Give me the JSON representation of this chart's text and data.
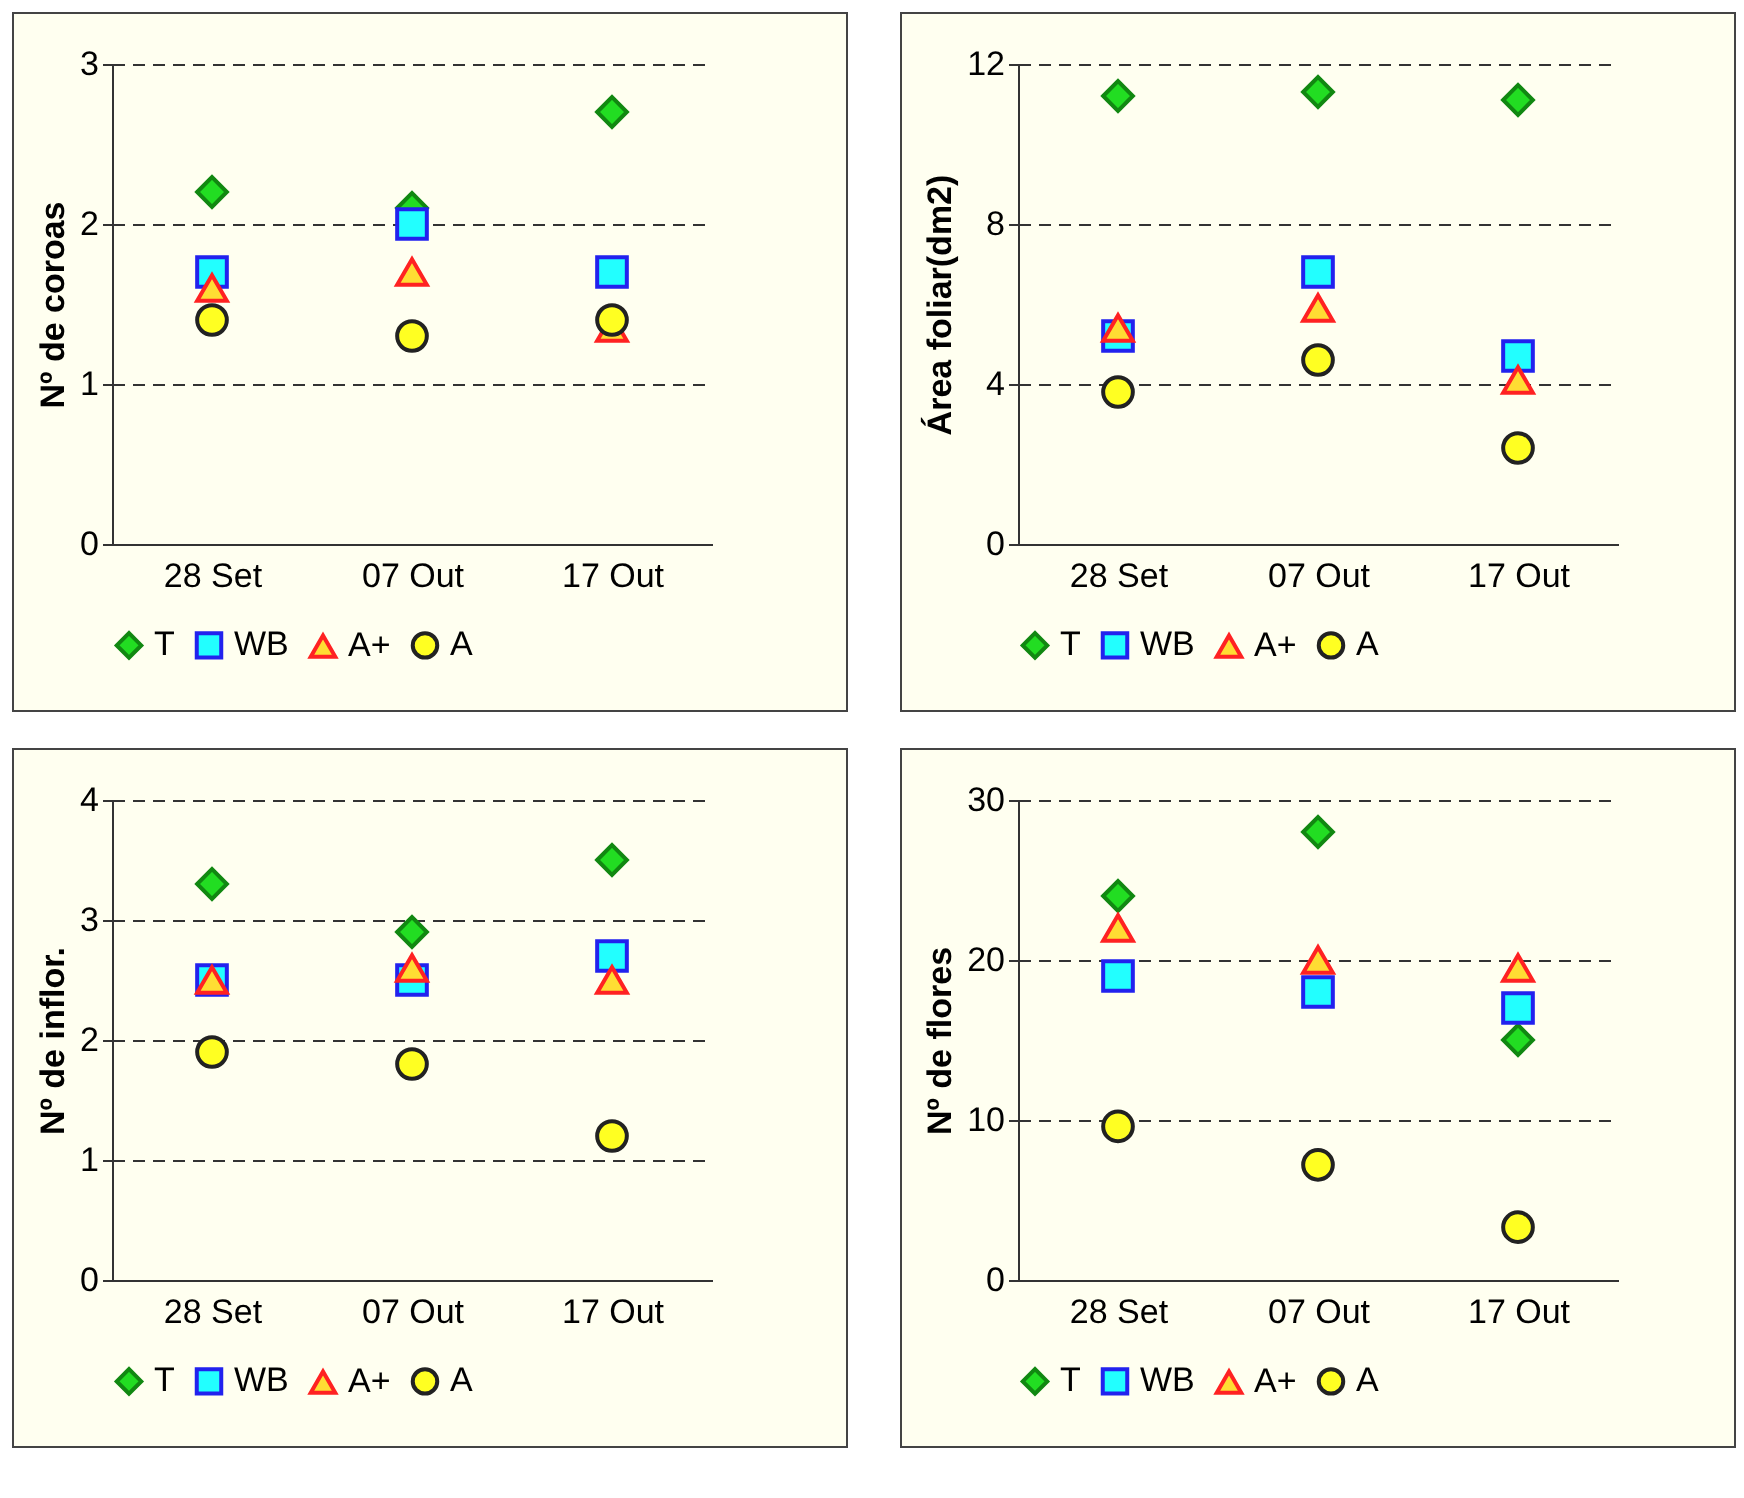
{
  "chart_data": [
    {
      "type": "scatter",
      "categories": [
        "28 Set",
        "07 Out",
        "17 Out"
      ],
      "ylabel": "Nº de coroas",
      "ylim": [
        0,
        3
      ],
      "yticks": [
        0,
        1,
        2,
        3
      ],
      "grid": "y",
      "legend": "bottom",
      "series": [
        {
          "name": "T",
          "color": "#22dd22",
          "marker": "diamond",
          "values": [
            2.2,
            2.1,
            2.7
          ]
        },
        {
          "name": "WB",
          "color": "#22ffff",
          "marker": "square",
          "values": [
            1.7,
            2.0,
            1.7
          ]
        },
        {
          "name": "A+",
          "color": "#ffdd33",
          "marker": "triangle",
          "values": [
            1.6,
            1.7,
            1.35
          ]
        },
        {
          "name": "A",
          "color": "#ffff22",
          "marker": "circle",
          "values": [
            1.4,
            1.3,
            1.4
          ]
        }
      ]
    },
    {
      "type": "scatter",
      "categories": [
        "28 Set",
        "07 Out",
        "17 Out"
      ],
      "ylabel": "Área foliar(dm2)",
      "ylim": [
        0,
        12
      ],
      "yticks": [
        0,
        4,
        8,
        12
      ],
      "grid": "y",
      "legend": "bottom",
      "series": [
        {
          "name": "T",
          "color": "#22dd22",
          "marker": "diamond",
          "values": [
            11.2,
            11.3,
            11.1
          ]
        },
        {
          "name": "WB",
          "color": "#22ffff",
          "marker": "square",
          "values": [
            5.2,
            6.8,
            4.7
          ]
        },
        {
          "name": "A+",
          "color": "#ffdd33",
          "marker": "triangle",
          "values": [
            5.4,
            5.9,
            4.1
          ]
        },
        {
          "name": "A",
          "color": "#ffff22",
          "marker": "circle",
          "values": [
            3.8,
            4.6,
            2.4
          ]
        }
      ]
    },
    {
      "type": "scatter",
      "categories": [
        "28 Set",
        "07 Out",
        "17 Out"
      ],
      "ylabel": "Nº de inflor.",
      "ylim": [
        0,
        4
      ],
      "yticks": [
        0,
        1,
        2,
        3,
        4
      ],
      "grid": "y",
      "legend": "bottom",
      "series": [
        {
          "name": "T",
          "color": "#22dd22",
          "marker": "diamond",
          "values": [
            3.3,
            2.9,
            3.5
          ]
        },
        {
          "name": "WB",
          "color": "#22ffff",
          "marker": "square",
          "values": [
            2.5,
            2.5,
            2.7
          ]
        },
        {
          "name": "A+",
          "color": "#ffdd33",
          "marker": "triangle",
          "values": [
            2.5,
            2.6,
            2.5
          ]
        },
        {
          "name": "A",
          "color": "#ffff22",
          "marker": "circle",
          "values": [
            1.9,
            1.8,
            1.2
          ]
        }
      ]
    },
    {
      "type": "scatter",
      "categories": [
        "28 Set",
        "07 Out",
        "17 Out"
      ],
      "ylabel": "Nº de flores",
      "ylim": [
        0,
        30
      ],
      "yticks": [
        0,
        10,
        20,
        30
      ],
      "grid": "y",
      "legend": "bottom",
      "series": [
        {
          "name": "T",
          "color": "#22dd22",
          "marker": "diamond",
          "values": [
            24,
            28,
            15
          ]
        },
        {
          "name": "WB",
          "color": "#22ffff",
          "marker": "square",
          "values": [
            19,
            18,
            17
          ]
        },
        {
          "name": "A+",
          "color": "#ffdd33",
          "marker": "triangle",
          "values": [
            22,
            20,
            19.5
          ]
        },
        {
          "name": "A",
          "color": "#ffff22",
          "marker": "circle",
          "values": [
            9.6,
            7.2,
            3.3
          ]
        }
      ]
    }
  ]
}
